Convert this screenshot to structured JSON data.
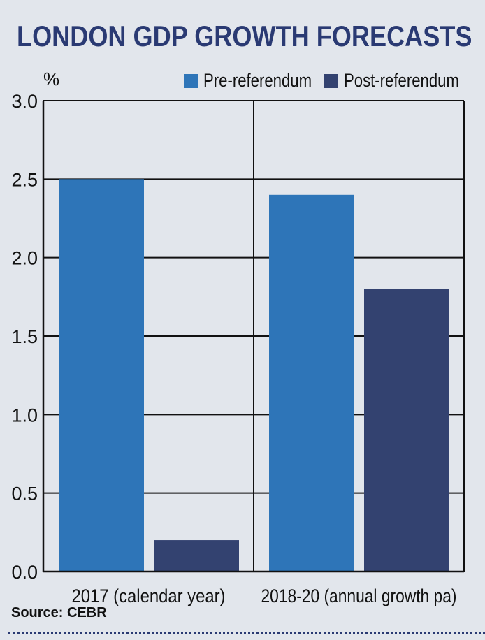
{
  "chart_data": {
    "type": "bar",
    "title": "LONDON GDP GROWTH FORECASTS",
    "ylabel": "%",
    "ylim": [
      0,
      3.0
    ],
    "yticks": [
      "3.0",
      "2.5",
      "2.0",
      "1.5",
      "1.0",
      "0.5",
      "0.0"
    ],
    "categories": [
      "2017 (calendar year)",
      "2018-20 (annual growth pa)"
    ],
    "series": [
      {
        "name": "Pre-referendum",
        "values": [
          2.5,
          2.4
        ],
        "color": "#2e75b8"
      },
      {
        "name": "Post-referendum",
        "values": [
          0.2,
          1.8
        ],
        "color": "#334270"
      }
    ],
    "grid": true,
    "legend": "top-right"
  },
  "source": "Source: CEBR"
}
